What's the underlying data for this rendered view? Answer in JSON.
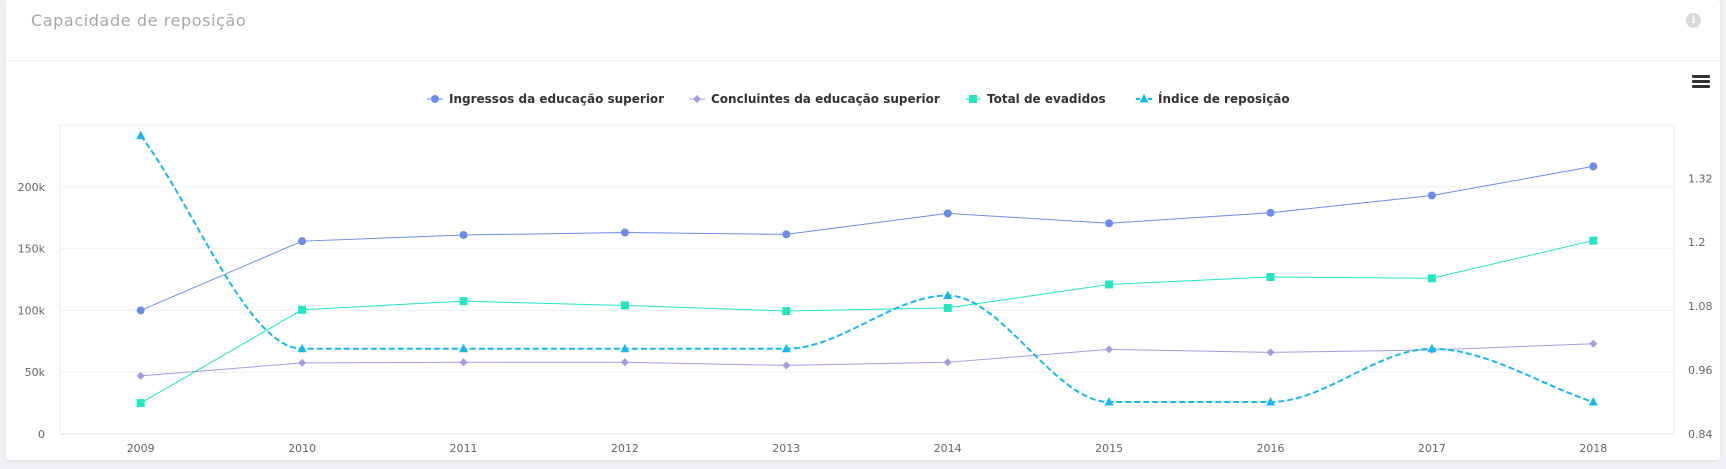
{
  "card": {
    "title": "Capacidade de reposição"
  },
  "chart_data": {
    "type": "line",
    "categories": [
      "2009",
      "2010",
      "2011",
      "2012",
      "2013",
      "2014",
      "2015",
      "2016",
      "2017",
      "2018"
    ],
    "series": [
      {
        "name": "Ingressos da educação superior",
        "axis": "left",
        "color": "#6b8ce8",
        "marker": "circle",
        "dashed": false,
        "smooth": false,
        "values": [
          100000,
          156000,
          161000,
          163000,
          161500,
          178500,
          170500,
          179000,
          193000,
          216500
        ]
      },
      {
        "name": "Concluintes da educação superior",
        "axis": "left",
        "color": "#a79ae0",
        "marker": "diamond",
        "dashed": false,
        "smooth": false,
        "values": [
          47000,
          57500,
          58000,
          58000,
          55500,
          58000,
          68500,
          66000,
          68000,
          73000
        ]
      },
      {
        "name": "Total de evadidos",
        "axis": "left",
        "color": "#22e6c0",
        "marker": "square",
        "dashed": false,
        "smooth": false,
        "values": [
          25000,
          100500,
          107500,
          104000,
          99500,
          102000,
          121000,
          127000,
          126000,
          156500
        ]
      },
      {
        "name": "Índice de reposição",
        "axis": "right",
        "color": "#19b9ee",
        "marker": "triangle",
        "dashed": true,
        "smooth": true,
        "values": [
          1.4,
          1.0,
          1.0,
          1.0,
          1.0,
          1.1,
          0.9,
          0.9,
          1.0,
          0.9
        ]
      }
    ],
    "y_left": {
      "min": 0,
      "max": 250000,
      "ticks": [
        0,
        50000,
        100000,
        150000,
        200000
      ],
      "tick_labels": [
        "0",
        "50k",
        "100k",
        "150k",
        "200k"
      ]
    },
    "y_right": {
      "min": 0.84,
      "max": 1.42,
      "ticks": [
        0.84,
        0.96,
        1.08,
        1.2,
        1.32
      ],
      "tick_labels": [
        "0.84",
        "0.96",
        "1.08",
        "1.2",
        "1.32"
      ]
    },
    "grid": true,
    "legend_position": "top-center",
    "title": "",
    "xlabel": "",
    "ylabel": ""
  }
}
